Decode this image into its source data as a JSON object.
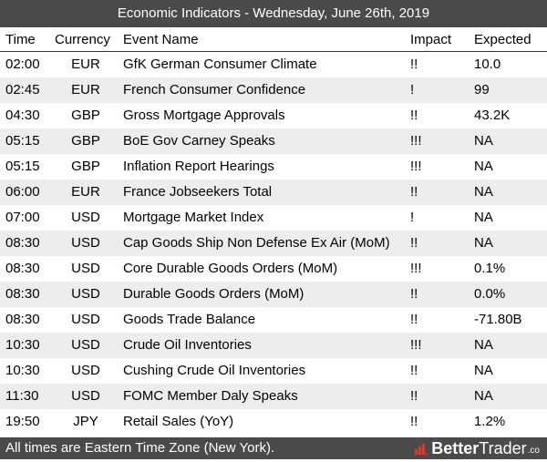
{
  "title": "Economic Indicators - Wednesday, June 26th, 2019",
  "columns": {
    "time": "Time",
    "currency": "Currency",
    "event": "Event Name",
    "impact": "Impact",
    "expected": "Expected"
  },
  "rows": [
    {
      "time": "02:00",
      "currency": "EUR",
      "event": "GfK German Consumer Climate",
      "impact": "!!",
      "expected": "10.0"
    },
    {
      "time": "02:45",
      "currency": "EUR",
      "event": "French Consumer Confidence",
      "impact": "!",
      "expected": "99"
    },
    {
      "time": "04:30",
      "currency": "GBP",
      "event": "Gross Mortgage Approvals",
      "impact": "!!",
      "expected": "43.2K"
    },
    {
      "time": "05:15",
      "currency": "GBP",
      "event": "BoE Gov Carney Speaks",
      "impact": "!!!",
      "expected": "NA"
    },
    {
      "time": "05:15",
      "currency": "GBP",
      "event": "Inflation Report Hearings",
      "impact": "!!!",
      "expected": "NA"
    },
    {
      "time": "06:00",
      "currency": "EUR",
      "event": "France Jobseekers Total",
      "impact": "!!",
      "expected": "NA"
    },
    {
      "time": "07:00",
      "currency": "USD",
      "event": "Mortgage Market Index",
      "impact": "!",
      "expected": "NA"
    },
    {
      "time": "08:30",
      "currency": "USD",
      "event": "Cap Goods Ship Non Defense Ex Air (MoM)",
      "impact": "!!",
      "expected": "NA"
    },
    {
      "time": "08:30",
      "currency": "USD",
      "event": "Core Durable Goods Orders (MoM)",
      "impact": "!!!",
      "expected": "0.1%"
    },
    {
      "time": "08:30",
      "currency": "USD",
      "event": "Durable Goods Orders (MoM)",
      "impact": "!!",
      "expected": "0.0%"
    },
    {
      "time": "08:30",
      "currency": "USD",
      "event": "Goods Trade Balance",
      "impact": "!!",
      "expected": "-71.80B"
    },
    {
      "time": "10:30",
      "currency": "USD",
      "event": "Crude Oil Inventories",
      "impact": "!!!",
      "expected": "NA"
    },
    {
      "time": "10:30",
      "currency": "USD",
      "event": "Cushing Crude Oil Inventories",
      "impact": "!!",
      "expected": "NA"
    },
    {
      "time": "11:30",
      "currency": "USD",
      "event": "FOMC Member Daly Speaks",
      "impact": "!!",
      "expected": "NA"
    },
    {
      "time": "19:50",
      "currency": "JPY",
      "event": "Retail Sales (YoY)",
      "impact": "!!",
      "expected": "1.2%"
    }
  ],
  "footer": {
    "note": "All times are Eastern Time Zone (New York).",
    "brand_better": "Better",
    "brand_trader": "Trader",
    "brand_suffix": ".co",
    "brand_icon": "bar-chart-logo-icon",
    "brand_icon_color": "#e0392b"
  }
}
